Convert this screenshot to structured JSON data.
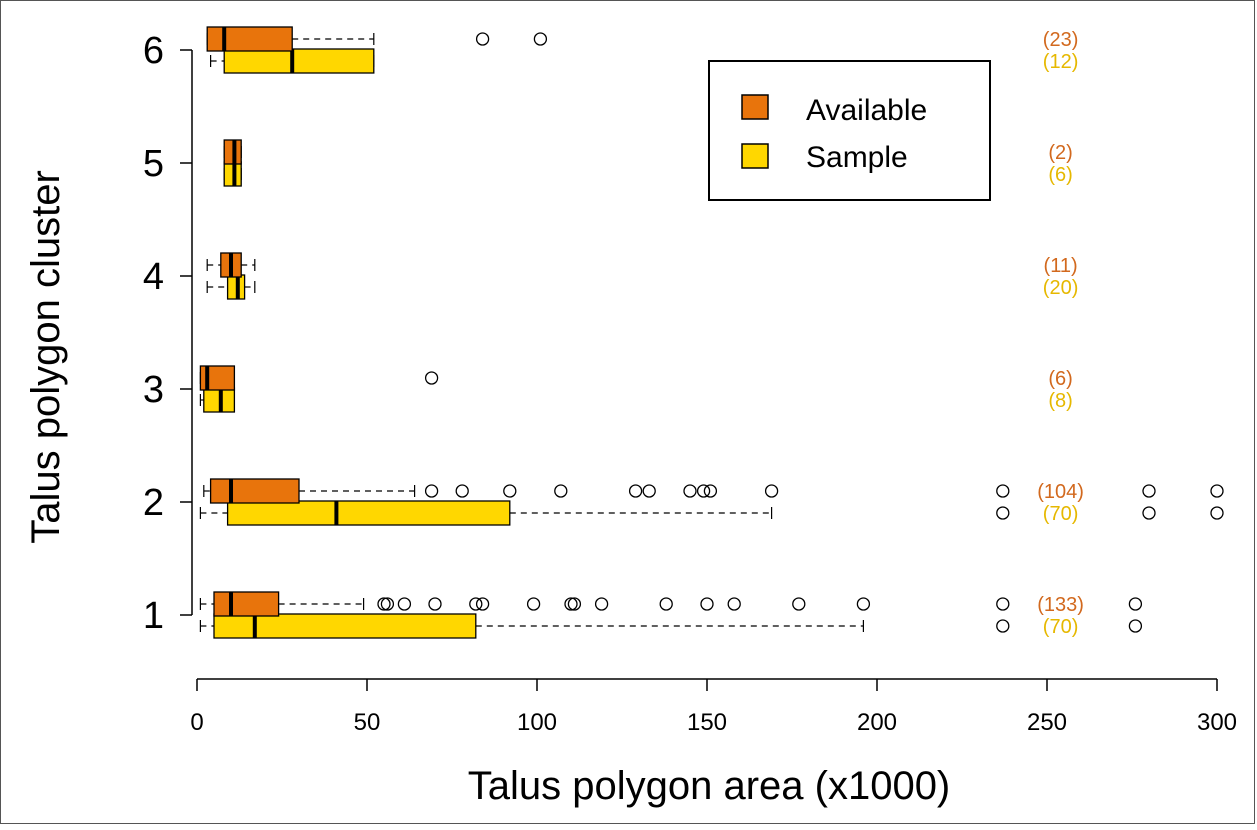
{
  "chart_data": {
    "type": "boxplot-horizontal",
    "xlabel": "Talus polygon area (x1000)",
    "ylabel": "Talus polygon cluster",
    "xlim": [
      0,
      300
    ],
    "xticks": [
      0,
      50,
      100,
      150,
      200,
      250,
      300
    ],
    "categories": [
      "1",
      "2",
      "3",
      "4",
      "5",
      "6"
    ],
    "legend": {
      "position": "top-right",
      "entries": [
        {
          "name": "Available",
          "color": "#E8740C"
        },
        {
          "name": "Sample",
          "color": "#FFD700"
        }
      ]
    },
    "count_label_x": 254,
    "groups": [
      {
        "cluster": "1",
        "available": {
          "count_label": "(133)",
          "whisker_low": 1,
          "q1": 5,
          "median": 10,
          "q3": 24,
          "whisker_high": 49,
          "outliers": [
            55,
            56,
            61,
            70,
            82,
            84,
            99,
            110,
            111,
            119,
            138,
            150,
            158,
            177,
            196,
            237,
            276
          ]
        },
        "sample": {
          "count_label": "(70)",
          "whisker_low": 1,
          "q1": 5,
          "median": 17,
          "q3": 82,
          "whisker_high": 196,
          "outliers": [
            237,
            276
          ]
        }
      },
      {
        "cluster": "2",
        "available": {
          "count_label": "(104)",
          "whisker_low": 2,
          "q1": 4,
          "median": 10,
          "q3": 30,
          "whisker_high": 64,
          "outliers": [
            69,
            78,
            92,
            107,
            129,
            133,
            145,
            149,
            151,
            169,
            237,
            280,
            300
          ]
        },
        "sample": {
          "count_label": "(70)",
          "whisker_low": 1,
          "q1": 9,
          "median": 41,
          "q3": 92,
          "whisker_high": 169,
          "outliers": [
            237,
            280,
            300
          ]
        }
      },
      {
        "cluster": "3",
        "available": {
          "count_label": "(6)",
          "whisker_low": 1,
          "q1": 1,
          "median": 3,
          "q3": 11,
          "whisker_high": 11,
          "outliers": [
            69
          ]
        },
        "sample": {
          "count_label": "(8)",
          "whisker_low": 1,
          "q1": 2,
          "median": 7,
          "q3": 11,
          "whisker_high": 11,
          "outliers": []
        }
      },
      {
        "cluster": "4",
        "available": {
          "count_label": "(11)",
          "whisker_low": 3,
          "q1": 7,
          "median": 10,
          "q3": 13,
          "whisker_high": 17,
          "outliers": []
        },
        "sample": {
          "count_label": "(20)",
          "whisker_low": 3,
          "q1": 9,
          "median": 12,
          "q3": 14,
          "whisker_high": 17,
          "outliers": []
        }
      },
      {
        "cluster": "5",
        "available": {
          "count_label": "(2)",
          "whisker_low": 8,
          "q1": 8,
          "median": 11,
          "q3": 13,
          "whisker_high": 13,
          "outliers": []
        },
        "sample": {
          "count_label": "(6)",
          "whisker_low": 8,
          "q1": 8,
          "median": 11,
          "q3": 13,
          "whisker_high": 13,
          "outliers": []
        }
      },
      {
        "cluster": "6",
        "available": {
          "count_label": "(23)",
          "whisker_low": 3,
          "q1": 3,
          "median": 8,
          "q3": 28,
          "whisker_high": 52,
          "outliers": [
            84,
            101
          ]
        },
        "sample": {
          "count_label": "(12)",
          "whisker_low": 4,
          "q1": 8,
          "median": 28,
          "q3": 52,
          "whisker_high": 52,
          "outliers": []
        }
      }
    ],
    "colors": {
      "available": "#E8740C",
      "sample": "#FFD700",
      "available_text": "#D2691E",
      "sample_text": "#E6B800",
      "outline": "#000000"
    }
  }
}
